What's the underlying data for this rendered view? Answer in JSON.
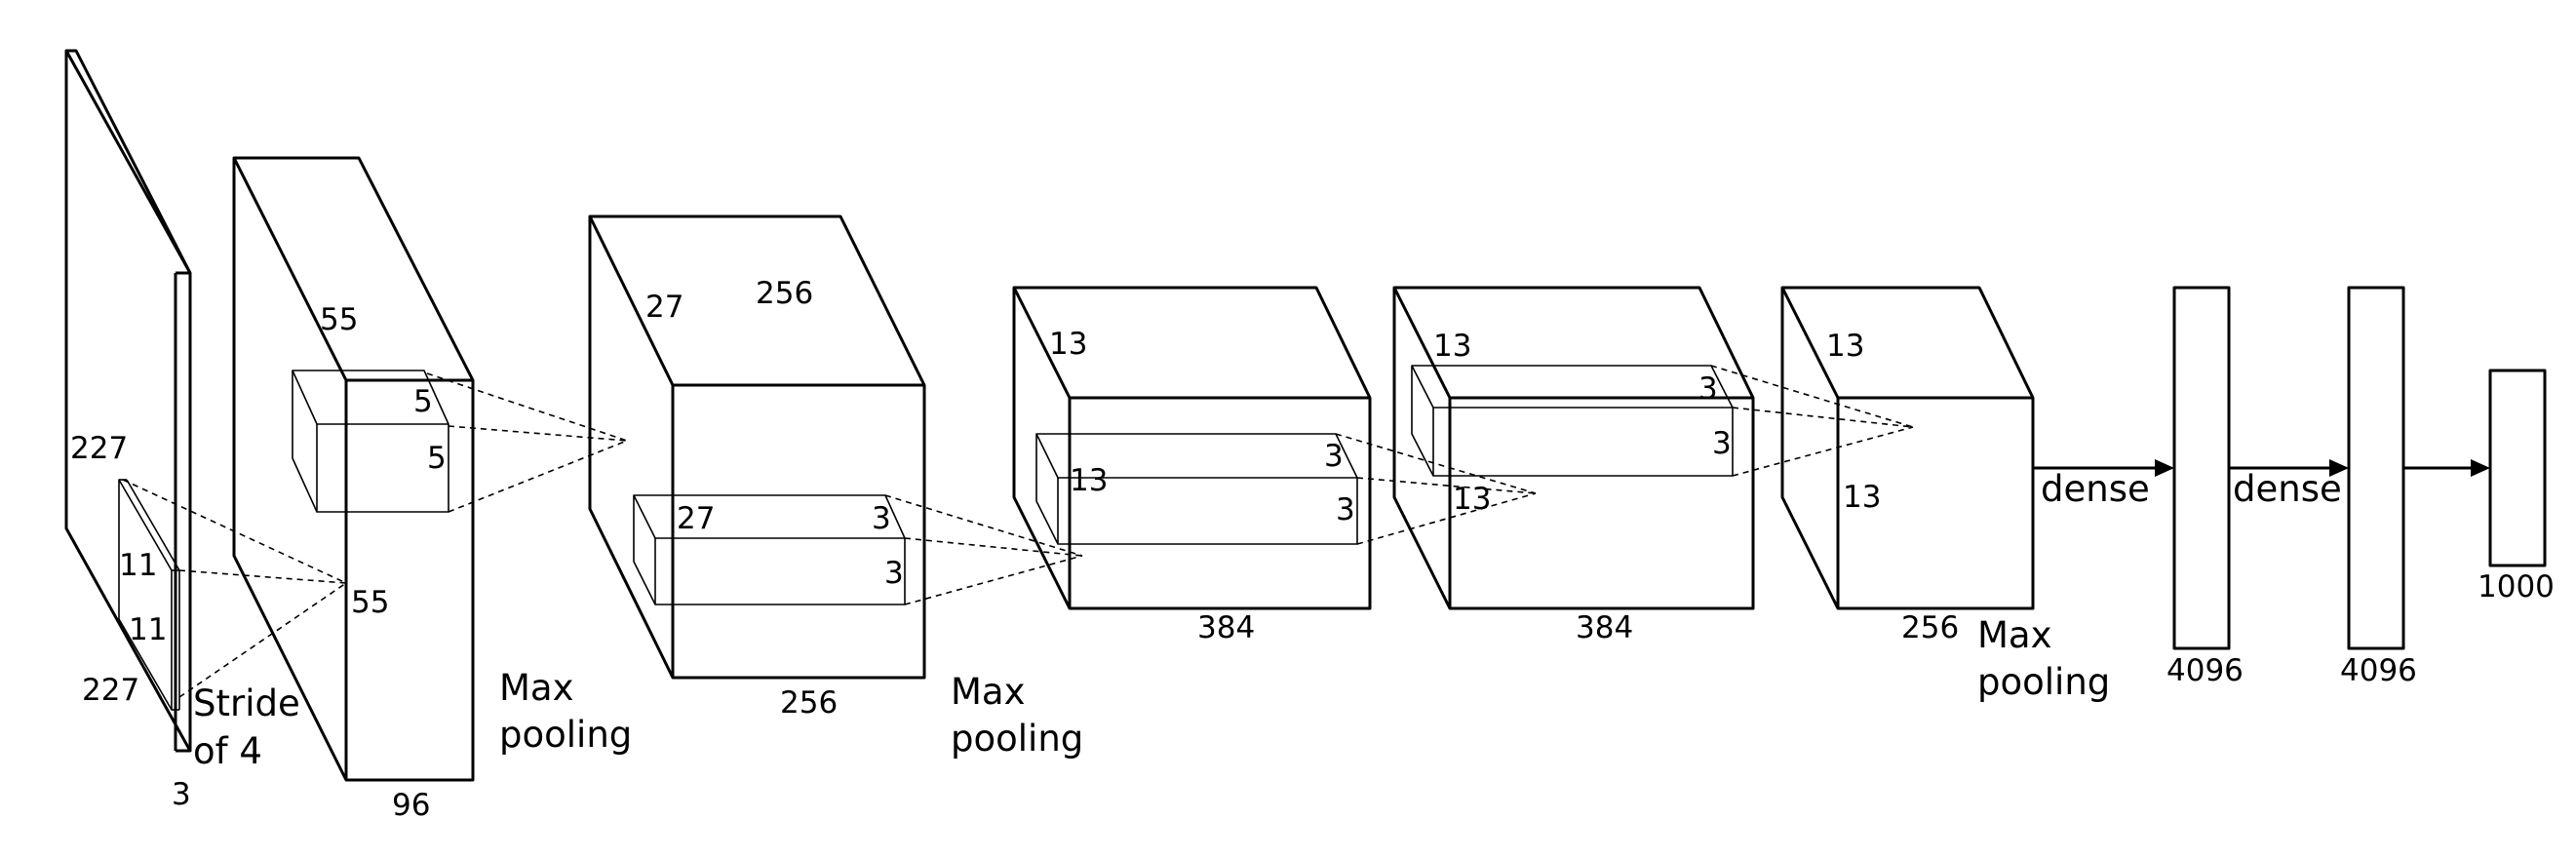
{
  "layers": {
    "input": {
      "height": "227",
      "width": "227",
      "depth": "3",
      "kernel_h": "11",
      "kernel_w": "11",
      "stride_line1": "Stride",
      "stride_line2": "of 4"
    },
    "conv1": {
      "height": "55",
      "depth": "96",
      "kernel_h": "5",
      "kernel_w": "5",
      "out_dim": "55"
    },
    "pool1": {
      "line1": "Max",
      "line2": "pooling"
    },
    "conv2": {
      "height": "27",
      "depth_top": "256",
      "depth": "256",
      "kernel_d": "27",
      "kernel_h": "3",
      "kernel_w": "3"
    },
    "pool2": {
      "line1": "Max",
      "line2": "pooling"
    },
    "conv3": {
      "height": "13",
      "kernel_d": "13",
      "kernel_h": "3",
      "kernel_w": "3",
      "depth": "384"
    },
    "conv4": {
      "height": "13",
      "kernel_h": "3",
      "kernel_w": "3",
      "out_dim": "13",
      "depth": "384"
    },
    "conv5": {
      "height": "13",
      "width": "13",
      "depth": "256"
    },
    "pool3": {
      "line1": "Max",
      "line2": "pooling"
    },
    "fc1": {
      "label": "dense",
      "size": "4096"
    },
    "fc2": {
      "label": "dense",
      "size": "4096"
    },
    "output": {
      "size": "1000"
    }
  }
}
